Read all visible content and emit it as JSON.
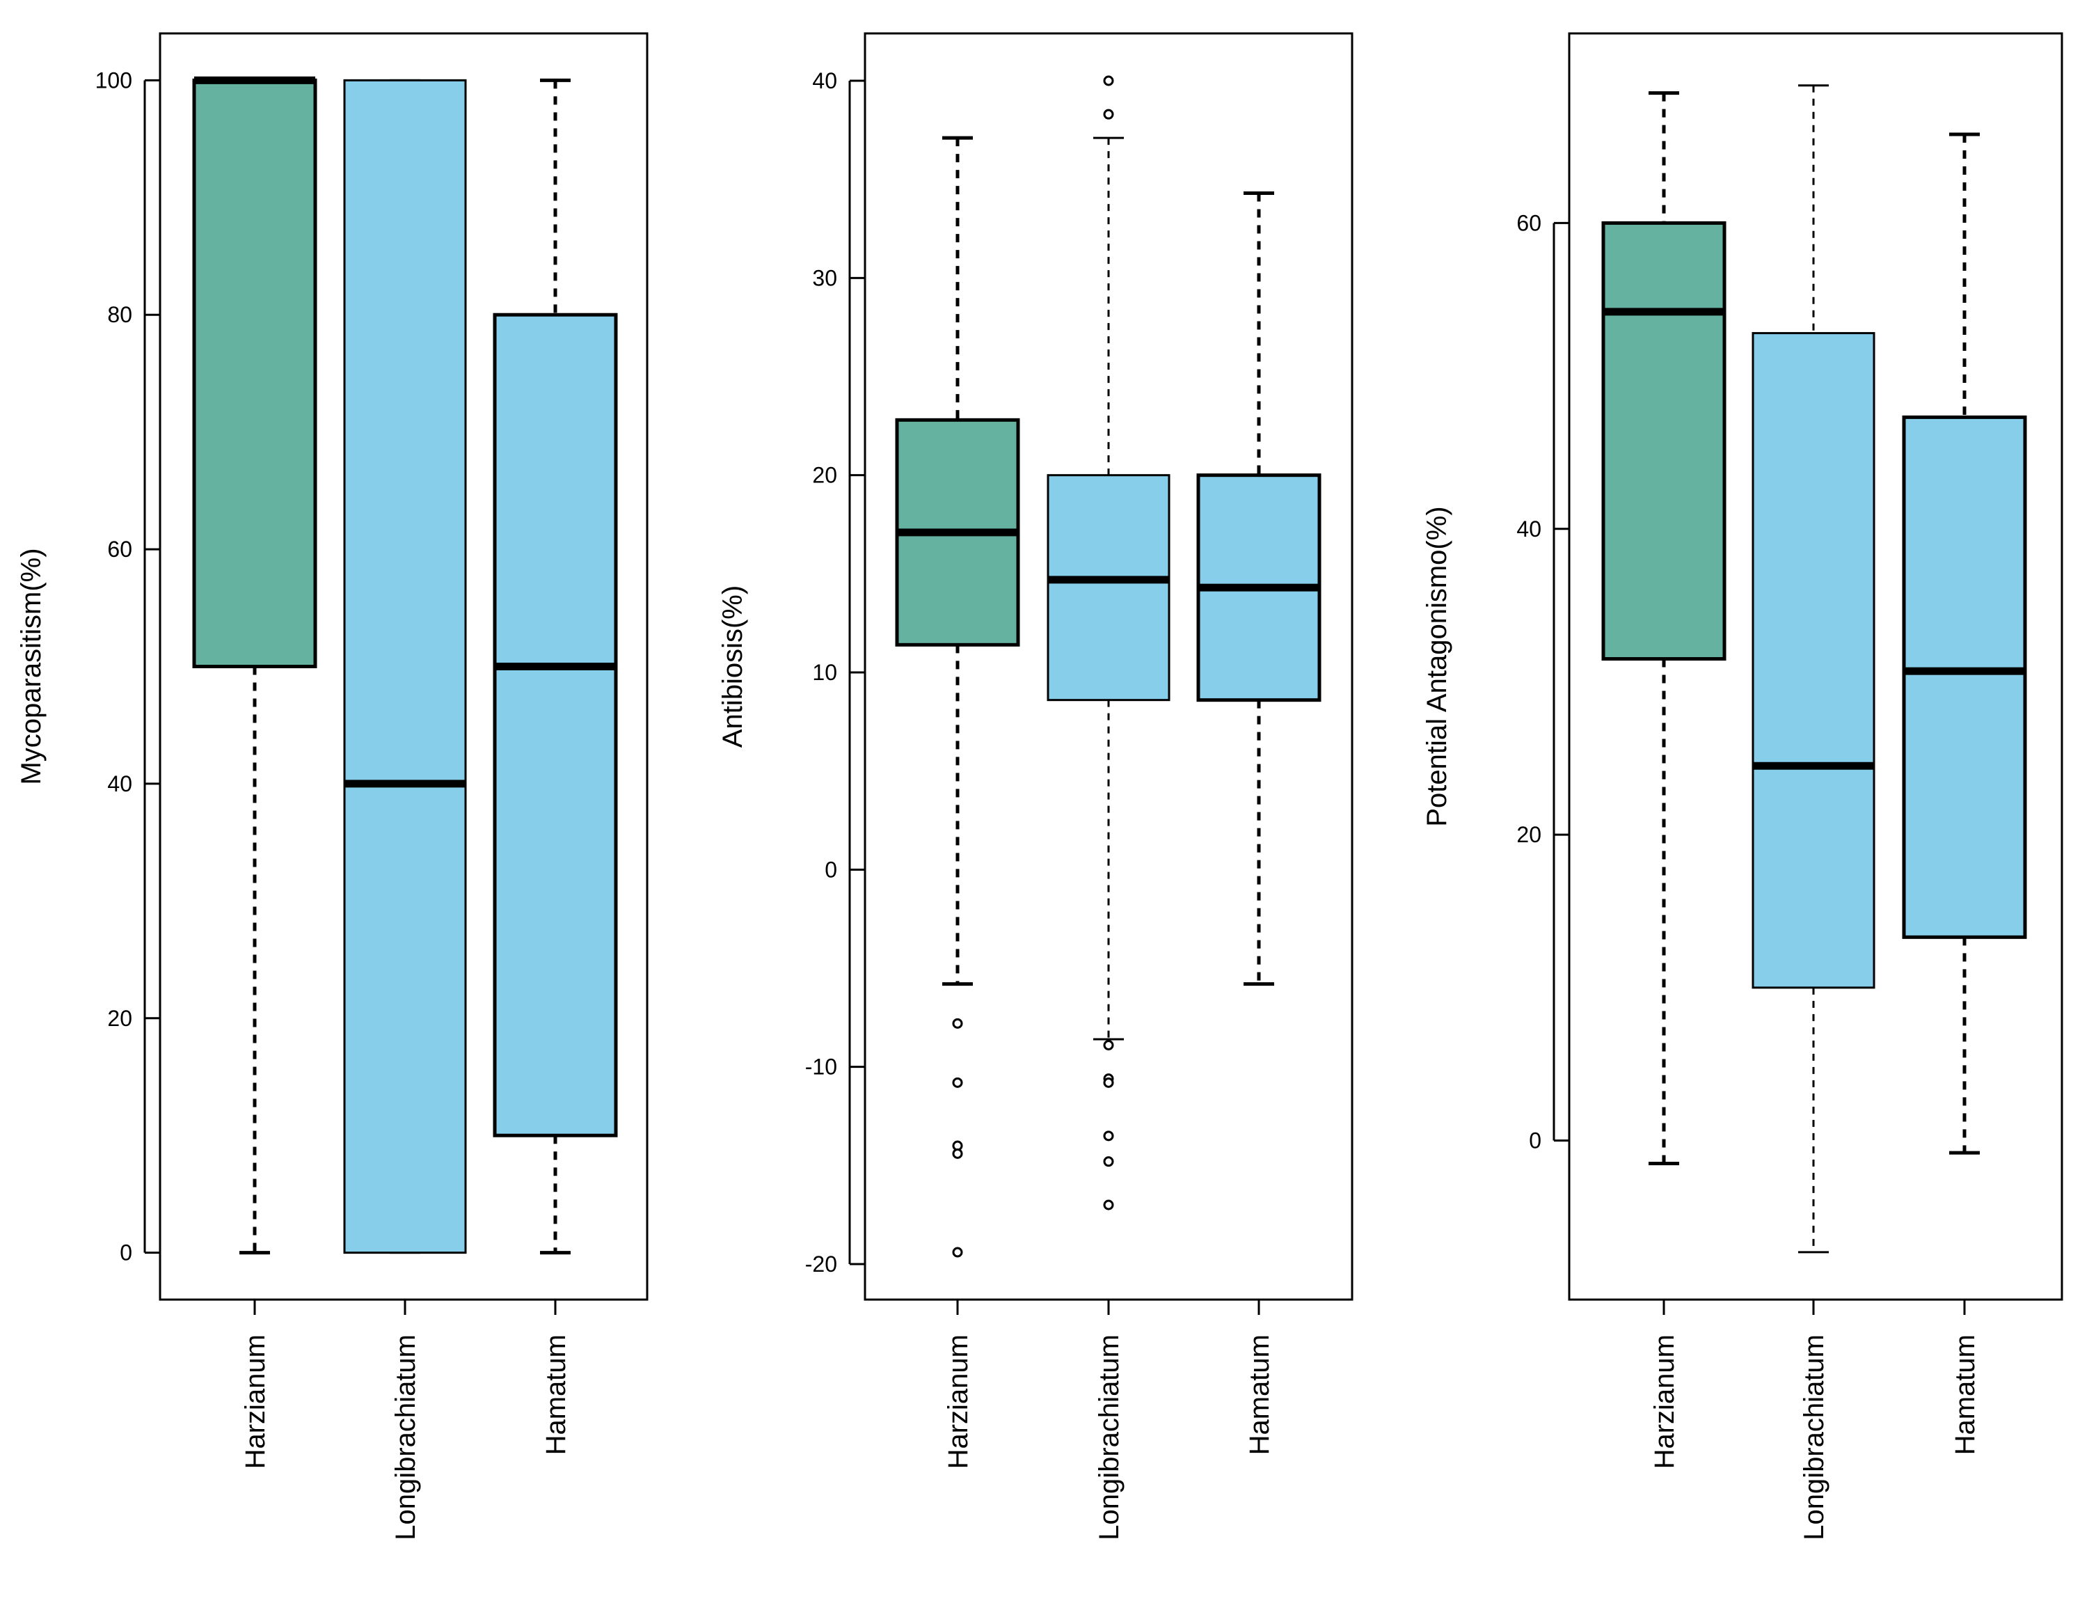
{
  "colors": {
    "harzianum": "#66B2A0",
    "other": "#87CEEB",
    "outline": "#000000"
  },
  "chart_data": [
    {
      "type": "boxplot",
      "ylabel": "Mycoparasitism(%)",
      "categories": [
        "Harzianum",
        "Longibrachiatum",
        "Hamatum"
      ],
      "ylim": [
        -4,
        104
      ],
      "yticks": [
        0,
        20,
        40,
        60,
        80,
        100
      ],
      "boxes": [
        {
          "name": "Harzianum",
          "whisker_low": 0,
          "q1": 50,
          "median": 100,
          "q3": 100,
          "whisker_high": 100,
          "outliers": [],
          "color": "harzianum",
          "bold": true
        },
        {
          "name": "Longibrachiatum",
          "whisker_low": 0,
          "q1": 0,
          "median": 40,
          "q3": 100,
          "whisker_high": 100,
          "outliers": [],
          "color": "other",
          "bold": false
        },
        {
          "name": "Hamatum",
          "whisker_low": 0,
          "q1": 10,
          "median": 50,
          "q3": 80,
          "whisker_high": 100,
          "outliers": [],
          "color": "other",
          "bold": true
        }
      ]
    },
    {
      "type": "boxplot",
      "ylabel": "Antibiosis(%)",
      "categories": [
        "Harzianum",
        "Longibrachiatum",
        "Hamatum"
      ],
      "ylim": [
        -21.8,
        42.4
      ],
      "yticks": [
        -20,
        -10,
        0,
        10,
        20,
        30,
        40
      ],
      "boxes": [
        {
          "name": "Harzianum",
          "whisker_low": -5.8,
          "q1": 11.4,
          "median": 17.1,
          "q3": 22.8,
          "whisker_high": 37.1,
          "outliers": [
            -7.8,
            -10.8,
            -14.0,
            -14.4,
            -19.4
          ],
          "color": "harzianum",
          "bold": true
        },
        {
          "name": "Longibrachiatum",
          "whisker_low": -8.6,
          "q1": 8.6,
          "median": 14.7,
          "q3": 20.0,
          "whisker_high": 37.1,
          "outliers": [
            38.3,
            40.0,
            -8.9,
            -10.6,
            -10.8,
            -13.5,
            -14.8,
            -17.0
          ],
          "color": "other",
          "bold": false
        },
        {
          "name": "Hamatum",
          "whisker_low": -5.8,
          "q1": 8.6,
          "median": 14.3,
          "q3": 20.0,
          "whisker_high": 34.3,
          "outliers": [],
          "color": "other",
          "bold": true
        }
      ]
    },
    {
      "type": "boxplot",
      "ylabel": "Potential Antagonismo(%)",
      "categories": [
        "Harzianum",
        "Longibrachiatum",
        "Hamatum"
      ],
      "ylim": [
        -10.4,
        72.4
      ],
      "yticks": [
        0,
        20,
        40,
        60
      ],
      "boxes": [
        {
          "name": "Harzianum",
          "whisker_low": -1.5,
          "q1": 31.5,
          "median": 54.2,
          "q3": 60.0,
          "whisker_high": 68.5,
          "outliers": [],
          "color": "harzianum",
          "bold": true
        },
        {
          "name": "Longibrachiatum",
          "whisker_low": -7.3,
          "q1": 10.0,
          "median": 24.5,
          "q3": 52.8,
          "whisker_high": 69.0,
          "outliers": [],
          "color": "other",
          "bold": false
        },
        {
          "name": "Hamatum",
          "whisker_low": -0.8,
          "q1": 13.3,
          "median": 30.7,
          "q3": 47.3,
          "whisker_high": 65.8,
          "outliers": [],
          "color": "other",
          "bold": true
        }
      ]
    }
  ]
}
